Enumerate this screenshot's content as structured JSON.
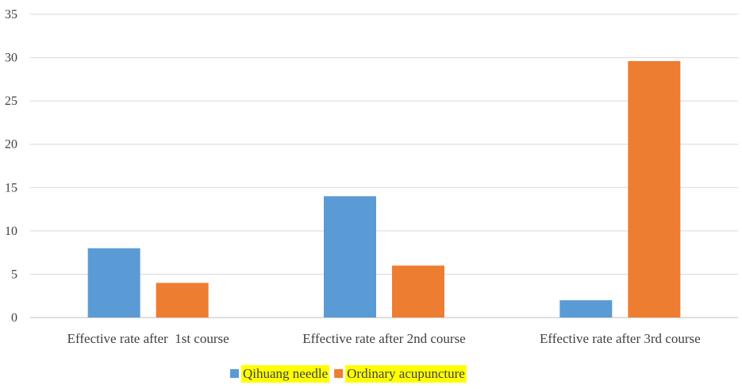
{
  "chart_data": {
    "type": "bar",
    "categories": [
      "Effective rate after  1st course",
      "Effective rate after 2nd course",
      "Effective rate after 3rd course"
    ],
    "series": [
      {
        "name": "Qihuang needle",
        "values": [
          8,
          14,
          2
        ],
        "color": "#5B9BD5"
      },
      {
        "name": "Ordinary acupuncture",
        "values": [
          4,
          6,
          29.6
        ],
        "color": "#ED7D31"
      }
    ],
    "ylim": [
      0,
      35
    ],
    "yticks": [
      "0",
      "5",
      "10",
      "15",
      "20",
      "25",
      "30",
      "35"
    ],
    "grid": true,
    "legend_position": "bottom",
    "legend_highlight": "#FFFF00"
  }
}
